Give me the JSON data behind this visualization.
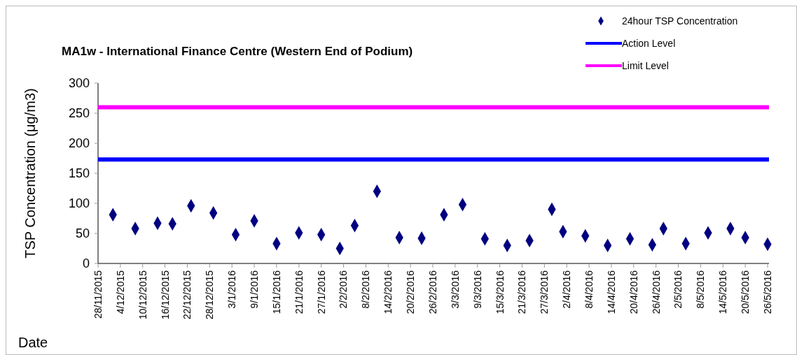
{
  "chart_data": {
    "type": "scatter",
    "title": "MA1w - International Finance Centre (Western End of Podium)",
    "xlabel": "Date",
    "ylabel": "TSP Concentration (μg/m3)",
    "series": [
      {
        "name": "24hour TSP Concentration",
        "color": "#000080",
        "x": [
          "2015-12-02",
          "2015-12-08",
          "2015-12-14",
          "2015-12-18",
          "2015-12-23",
          "2015-12-29",
          "2016-01-04",
          "2016-01-09",
          "2016-01-15",
          "2016-01-21",
          "2016-01-27",
          "2016-02-01",
          "2016-02-05",
          "2016-02-11",
          "2016-02-17",
          "2016-02-23",
          "2016-02-29",
          "2016-03-05",
          "2016-03-11",
          "2016-03-17",
          "2016-03-23",
          "2016-03-29",
          "2016-04-01",
          "2016-04-07",
          "2016-04-13",
          "2016-04-19",
          "2016-04-25",
          "2016-04-28",
          "2016-05-04",
          "2016-05-10",
          "2016-05-16",
          "2016-05-20",
          "2016-05-26"
        ],
        "values": [
          81,
          58,
          67,
          66,
          96,
          84,
          48,
          71,
          33,
          51,
          48,
          25,
          63,
          120,
          43,
          42,
          81,
          98,
          41,
          30,
          38,
          90,
          53,
          46,
          30,
          41,
          31,
          58,
          33,
          51,
          58,
          43,
          32
        ]
      }
    ],
    "ref_lines": [
      {
        "axis": "y",
        "value": 173,
        "label": "Action Level",
        "color": "#0000ff"
      },
      {
        "axis": "y",
        "value": 260,
        "label": "Limit Level",
        "color": "#ff00ff"
      }
    ],
    "xlim": [
      "2015-11-28",
      "2016-05-26"
    ],
    "xticks": [
      {
        "value": "2015-11-28",
        "label": "28/11/2015"
      },
      {
        "value": "2015-12-04",
        "label": "4/12/2015"
      },
      {
        "value": "2015-12-10",
        "label": "10/12/2015"
      },
      {
        "value": "2015-12-16",
        "label": "16/12/2015"
      },
      {
        "value": "2015-12-22",
        "label": "22/12/2015"
      },
      {
        "value": "2015-12-28",
        "label": "28/12/2015"
      },
      {
        "value": "2016-01-03",
        "label": "3/1/2016"
      },
      {
        "value": "2016-01-09",
        "label": "9/1/2016"
      },
      {
        "value": "2016-01-15",
        "label": "15/1/2016"
      },
      {
        "value": "2016-01-21",
        "label": "21/1/2016"
      },
      {
        "value": "2016-01-27",
        "label": "27/1/2016"
      },
      {
        "value": "2016-02-02",
        "label": "2/2/2016"
      },
      {
        "value": "2016-02-08",
        "label": "8/2/2016"
      },
      {
        "value": "2016-02-14",
        "label": "14/2/2016"
      },
      {
        "value": "2016-02-20",
        "label": "20/2/2016"
      },
      {
        "value": "2016-02-26",
        "label": "26/2/2016"
      },
      {
        "value": "2016-03-03",
        "label": "3/3/2016"
      },
      {
        "value": "2016-03-09",
        "label": "9/3/2016"
      },
      {
        "value": "2016-03-15",
        "label": "15/3/2016"
      },
      {
        "value": "2016-03-21",
        "label": "21/3/2016"
      },
      {
        "value": "2016-03-27",
        "label": "27/3/2016"
      },
      {
        "value": "2016-04-02",
        "label": "2/4/2016"
      },
      {
        "value": "2016-04-08",
        "label": "8/4/2016"
      },
      {
        "value": "2016-04-14",
        "label": "14/4/2016"
      },
      {
        "value": "2016-04-20",
        "label": "20/4/2016"
      },
      {
        "value": "2016-04-26",
        "label": "26/4/2016"
      },
      {
        "value": "2016-05-02",
        "label": "2/5/2016"
      },
      {
        "value": "2016-05-08",
        "label": "8/5/2016"
      },
      {
        "value": "2016-05-14",
        "label": "14/5/2016"
      },
      {
        "value": "2016-05-20",
        "label": "20/5/2016"
      },
      {
        "value": "2016-05-26",
        "label": "26/5/2016"
      }
    ],
    "ylim": [
      0,
      300
    ],
    "yticks": [
      0,
      50,
      100,
      150,
      200,
      250,
      300
    ],
    "grid": false,
    "legend": "top right",
    "marker": "diamond"
  }
}
